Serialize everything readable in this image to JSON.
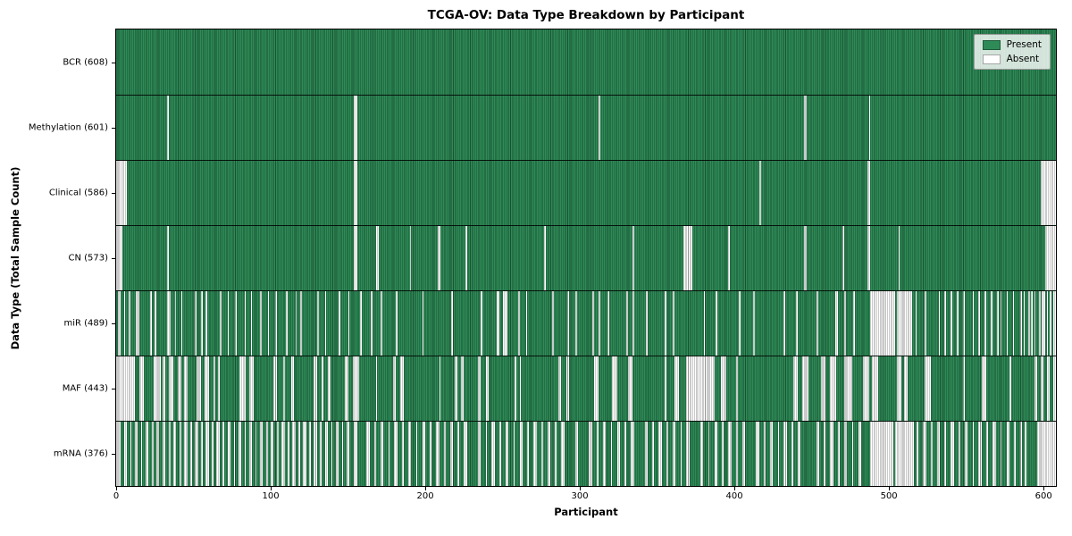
{
  "chart_data": {
    "type": "heatmap",
    "title": "TCGA-OV: Data Type Breakdown by Participant",
    "xlabel": "Participant",
    "ylabel": "Data Type (Total Sample Count)",
    "legend": [
      "Present",
      "Absent"
    ],
    "legend_position": "upper right",
    "grid": false,
    "n_participants": 608,
    "x_range": [
      0,
      608
    ],
    "x_ticks": [
      0,
      100,
      200,
      300,
      400,
      500,
      600
    ],
    "colors": {
      "present": "#2e8b57",
      "absent": "#ffffff"
    },
    "rows": [
      {
        "key": "bcr",
        "label": "BCR (608)",
        "data_type": "BCR",
        "present_count": 608,
        "absent_intervals": []
      },
      {
        "key": "methylation",
        "label": "Methylation (601)",
        "data_type": "Methylation",
        "present_count": 601,
        "absent_intervals": [
          [
            33,
            33
          ],
          [
            154,
            155
          ],
          [
            312,
            312
          ],
          [
            445,
            446
          ],
          [
            487,
            487
          ]
        ]
      },
      {
        "key": "clinical",
        "label": "Clinical (586)",
        "data_type": "Clinical",
        "present_count": 586,
        "absent_intervals": [
          [
            0,
            6
          ],
          [
            154,
            155
          ],
          [
            416,
            416
          ],
          [
            486,
            487
          ],
          [
            598,
            607
          ]
        ]
      },
      {
        "key": "cn",
        "label": "CN (573)",
        "data_type": "CN",
        "present_count": 573,
        "absent_intervals": [
          [
            0,
            3
          ],
          [
            33,
            33
          ],
          [
            154,
            155
          ],
          [
            168,
            169
          ],
          [
            190,
            190
          ],
          [
            208,
            209
          ],
          [
            226,
            226
          ],
          [
            277,
            277
          ],
          [
            334,
            334
          ],
          [
            367,
            372
          ],
          [
            396,
            396
          ],
          [
            445,
            446
          ],
          [
            470,
            470
          ],
          [
            486,
            487
          ],
          [
            506,
            506
          ],
          [
            601,
            607
          ]
        ]
      },
      {
        "key": "mir",
        "label": "miR (489)",
        "data_type": "miR",
        "present_count": 489,
        "absent_intervals": [
          [
            1,
            2
          ],
          [
            5,
            5
          ],
          [
            8,
            8
          ],
          [
            13,
            14
          ],
          [
            22,
            22
          ],
          [
            25,
            25
          ],
          [
            33,
            34
          ],
          [
            38,
            38
          ],
          [
            42,
            42
          ],
          [
            51,
            51
          ],
          [
            55,
            55
          ],
          [
            58,
            58
          ],
          [
            67,
            67
          ],
          [
            72,
            72
          ],
          [
            77,
            77
          ],
          [
            83,
            83
          ],
          [
            87,
            87
          ],
          [
            93,
            93
          ],
          [
            98,
            98
          ],
          [
            103,
            103
          ],
          [
            110,
            110
          ],
          [
            116,
            116
          ],
          [
            119,
            119
          ],
          [
            130,
            130
          ],
          [
            135,
            135
          ],
          [
            144,
            144
          ],
          [
            150,
            150
          ],
          [
            158,
            158
          ],
          [
            165,
            165
          ],
          [
            171,
            171
          ],
          [
            181,
            181
          ],
          [
            198,
            198
          ],
          [
            217,
            217
          ],
          [
            236,
            236
          ],
          [
            246,
            247
          ],
          [
            250,
            252
          ],
          [
            260,
            260
          ],
          [
            265,
            265
          ],
          [
            282,
            282
          ],
          [
            292,
            292
          ],
          [
            297,
            297
          ],
          [
            308,
            308
          ],
          [
            312,
            312
          ],
          [
            318,
            318
          ],
          [
            330,
            330
          ],
          [
            334,
            334
          ],
          [
            343,
            343
          ],
          [
            355,
            355
          ],
          [
            360,
            360
          ],
          [
            380,
            380
          ],
          [
            388,
            388
          ],
          [
            403,
            403
          ],
          [
            412,
            412
          ],
          [
            432,
            432
          ],
          [
            440,
            440
          ],
          [
            453,
            453
          ],
          [
            465,
            466
          ],
          [
            471,
            471
          ],
          [
            477,
            477
          ],
          [
            488,
            503
          ],
          [
            505,
            514
          ],
          [
            517,
            517
          ],
          [
            523,
            523
          ],
          [
            532,
            532
          ],
          [
            536,
            536
          ],
          [
            540,
            540
          ],
          [
            544,
            544
          ],
          [
            548,
            548
          ],
          [
            554,
            554
          ],
          [
            558,
            558
          ],
          [
            562,
            562
          ],
          [
            566,
            566
          ],
          [
            570,
            570
          ],
          [
            572,
            572
          ],
          [
            576,
            576
          ],
          [
            580,
            580
          ],
          [
            585,
            585
          ],
          [
            587,
            587
          ],
          [
            590,
            590
          ],
          [
            592,
            592
          ],
          [
            594,
            594
          ],
          [
            597,
            597
          ],
          [
            599,
            600
          ],
          [
            602,
            602
          ],
          [
            604,
            604
          ],
          [
            606,
            607
          ]
        ]
      },
      {
        "key": "maf",
        "label": "MAF (443)",
        "data_type": "MAF",
        "present_count": 443,
        "absent_intervals": [
          [
            0,
            11
          ],
          [
            15,
            17
          ],
          [
            24,
            28
          ],
          [
            30,
            31
          ],
          [
            34,
            36
          ],
          [
            40,
            41
          ],
          [
            44,
            45
          ],
          [
            52,
            54
          ],
          [
            57,
            59
          ],
          [
            63,
            63
          ],
          [
            66,
            66
          ],
          [
            80,
            83
          ],
          [
            86,
            88
          ],
          [
            102,
            103
          ],
          [
            108,
            108
          ],
          [
            113,
            114
          ],
          [
            128,
            129
          ],
          [
            133,
            133
          ],
          [
            137,
            138
          ],
          [
            148,
            149
          ],
          [
            153,
            156
          ],
          [
            168,
            168
          ],
          [
            179,
            180
          ],
          [
            184,
            185
          ],
          [
            209,
            209
          ],
          [
            219,
            220
          ],
          [
            223,
            224
          ],
          [
            234,
            235
          ],
          [
            239,
            240
          ],
          [
            258,
            258
          ],
          [
            261,
            261
          ],
          [
            286,
            287
          ],
          [
            291,
            292
          ],
          [
            309,
            311
          ],
          [
            321,
            323
          ],
          [
            331,
            333
          ],
          [
            355,
            355
          ],
          [
            361,
            363
          ],
          [
            369,
            386
          ],
          [
            391,
            394
          ],
          [
            401,
            401
          ],
          [
            438,
            440
          ],
          [
            444,
            447
          ],
          [
            456,
            458
          ],
          [
            462,
            465
          ],
          [
            471,
            475
          ],
          [
            483,
            486
          ],
          [
            489,
            492
          ],
          [
            505,
            507
          ],
          [
            510,
            511
          ],
          [
            523,
            526
          ],
          [
            548,
            548
          ],
          [
            560,
            562
          ],
          [
            578,
            578
          ],
          [
            594,
            595
          ],
          [
            598,
            599
          ],
          [
            602,
            603
          ],
          [
            606,
            607
          ]
        ]
      },
      {
        "key": "mrna",
        "label": "mRNA (376)",
        "data_type": "mRNA",
        "present_count": 376,
        "absent_intervals": [
          [
            0,
            2
          ],
          [
            5,
            6
          ],
          [
            9,
            9
          ],
          [
            12,
            13
          ],
          [
            16,
            16
          ],
          [
            19,
            20
          ],
          [
            23,
            23
          ],
          [
            26,
            27
          ],
          [
            30,
            31
          ],
          [
            34,
            34
          ],
          [
            37,
            38
          ],
          [
            41,
            41
          ],
          [
            44,
            45
          ],
          [
            48,
            48
          ],
          [
            51,
            52
          ],
          [
            55,
            55
          ],
          [
            58,
            59
          ],
          [
            62,
            62
          ],
          [
            65,
            66
          ],
          [
            69,
            69
          ],
          [
            72,
            73
          ],
          [
            76,
            76
          ],
          [
            79,
            80
          ],
          [
            83,
            83
          ],
          [
            86,
            87
          ],
          [
            90,
            90
          ],
          [
            93,
            94
          ],
          [
            97,
            97
          ],
          [
            100,
            101
          ],
          [
            104,
            104
          ],
          [
            107,
            108
          ],
          [
            111,
            111
          ],
          [
            114,
            115
          ],
          [
            118,
            118
          ],
          [
            121,
            122
          ],
          [
            125,
            125
          ],
          [
            128,
            129
          ],
          [
            132,
            132
          ],
          [
            135,
            136
          ],
          [
            139,
            139
          ],
          [
            142,
            143
          ],
          [
            146,
            146
          ],
          [
            149,
            150
          ],
          [
            154,
            155
          ],
          [
            162,
            163
          ],
          [
            167,
            167
          ],
          [
            171,
            172
          ],
          [
            176,
            176
          ],
          [
            180,
            181
          ],
          [
            185,
            185
          ],
          [
            189,
            190
          ],
          [
            194,
            194
          ],
          [
            198,
            199
          ],
          [
            203,
            203
          ],
          [
            207,
            208
          ],
          [
            212,
            212
          ],
          [
            216,
            217
          ],
          [
            221,
            221
          ],
          [
            225,
            226
          ],
          [
            234,
            235
          ],
          [
            239,
            239
          ],
          [
            243,
            244
          ],
          [
            248,
            248
          ],
          [
            252,
            253
          ],
          [
            257,
            257
          ],
          [
            261,
            262
          ],
          [
            266,
            266
          ],
          [
            270,
            271
          ],
          [
            275,
            275
          ],
          [
            279,
            280
          ],
          [
            284,
            284
          ],
          [
            288,
            289
          ],
          [
            297,
            298
          ],
          [
            306,
            307
          ],
          [
            311,
            311
          ],
          [
            315,
            316
          ],
          [
            320,
            320
          ],
          [
            324,
            325
          ],
          [
            329,
            329
          ],
          [
            333,
            334
          ],
          [
            342,
            343
          ],
          [
            347,
            347
          ],
          [
            351,
            352
          ],
          [
            356,
            356
          ],
          [
            360,
            361
          ],
          [
            365,
            365
          ],
          [
            369,
            370
          ],
          [
            378,
            379
          ],
          [
            383,
            383
          ],
          [
            387,
            388
          ],
          [
            392,
            392
          ],
          [
            396,
            397
          ],
          [
            401,
            401
          ],
          [
            405,
            406
          ],
          [
            414,
            415
          ],
          [
            419,
            419
          ],
          [
            423,
            424
          ],
          [
            428,
            428
          ],
          [
            432,
            433
          ],
          [
            437,
            437
          ],
          [
            441,
            442
          ],
          [
            453,
            454
          ],
          [
            458,
            458
          ],
          [
            462,
            463
          ],
          [
            467,
            467
          ],
          [
            471,
            472
          ],
          [
            476,
            476
          ],
          [
            480,
            481
          ],
          [
            488,
            502
          ],
          [
            504,
            515
          ],
          [
            518,
            518
          ],
          [
            522,
            523
          ],
          [
            527,
            527
          ],
          [
            531,
            532
          ],
          [
            536,
            536
          ],
          [
            540,
            541
          ],
          [
            545,
            545
          ],
          [
            549,
            550
          ],
          [
            554,
            554
          ],
          [
            558,
            559
          ],
          [
            563,
            563
          ],
          [
            567,
            568
          ],
          [
            572,
            572
          ],
          [
            576,
            577
          ],
          [
            581,
            581
          ],
          [
            585,
            585
          ],
          [
            588,
            588
          ],
          [
            596,
            607
          ]
        ]
      }
    ]
  }
}
